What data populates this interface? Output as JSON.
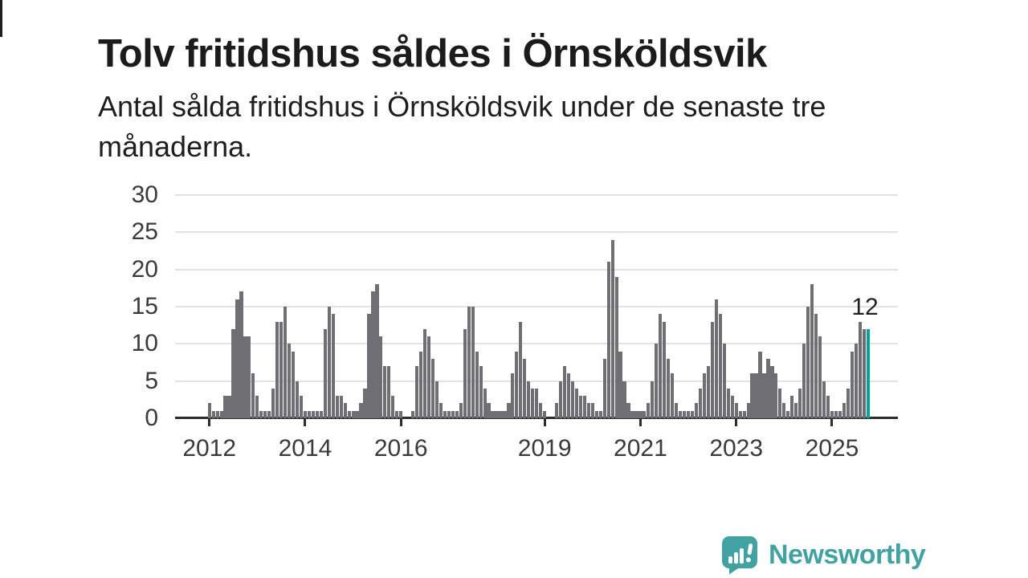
{
  "header": {
    "title": "Tolv fritidshus såldes i Örnsköldsvik",
    "subtitle": "Antal sålda fritidshus i Örnsköldsvik under de senaste tre månaderna."
  },
  "chart_data": {
    "type": "bar",
    "title": "Tolv fritidshus såldes i Örnsköldsvik",
    "x_start": "2012-01",
    "x_end": "2025-10",
    "x_frequency": "monthly",
    "values": [
      2,
      1,
      1,
      1,
      3,
      3,
      12,
      16,
      17,
      11,
      11,
      6,
      3,
      1,
      1,
      1,
      4,
      13,
      13,
      15,
      10,
      9,
      5,
      3,
      1,
      1,
      1,
      1,
      1,
      12,
      15,
      14,
      3,
      3,
      2,
      1,
      1,
      1,
      2,
      4,
      14,
      17,
      18,
      11,
      7,
      7,
      3,
      1,
      1,
      0,
      0,
      1,
      7,
      9,
      12,
      11,
      8,
      5,
      2,
      1,
      1,
      1,
      1,
      2,
      12,
      15,
      15,
      9,
      7,
      4,
      2,
      1,
      1,
      1,
      1,
      2,
      6,
      9,
      13,
      8,
      5,
      4,
      4,
      2,
      1,
      0,
      0,
      2,
      5,
      7,
      6,
      5,
      4,
      3,
      3,
      2,
      2,
      1,
      1,
      8,
      21,
      24,
      19,
      9,
      5,
      2,
      1,
      1,
      1,
      1,
      2,
      5,
      10,
      14,
      13,
      8,
      6,
      2,
      1,
      1,
      1,
      1,
      2,
      4,
      6,
      7,
      13,
      16,
      14,
      10,
      4,
      3,
      2,
      1,
      1,
      2,
      6,
      6,
      9,
      6,
      8,
      7,
      6,
      4,
      2,
      1,
      3,
      2,
      4,
      10,
      15,
      18,
      14,
      11,
      5,
      3,
      1,
      1,
      1,
      2,
      4,
      9,
      10,
      13,
      12,
      12
    ],
    "ylim": [
      0,
      30
    ],
    "yticks": [
      0,
      5,
      10,
      15,
      20,
      25,
      30
    ],
    "xticks": [
      {
        "label": "2012",
        "index": 0
      },
      {
        "label": "2014",
        "index": 24
      },
      {
        "label": "2016",
        "index": 48
      },
      {
        "label": "2019",
        "index": 84
      },
      {
        "label": "2021",
        "index": 108
      },
      {
        "label": "2023",
        "index": 132
      },
      {
        "label": "2025",
        "index": 156
      }
    ],
    "grid": true,
    "legend": "none",
    "bar_color": "#6e6e73",
    "highlight_color": "#00a39b",
    "highlight_index": 165,
    "last_value_label": "12"
  },
  "footer": {
    "logo_text": "Newsworthy",
    "logo_color": "#41a2a1"
  }
}
